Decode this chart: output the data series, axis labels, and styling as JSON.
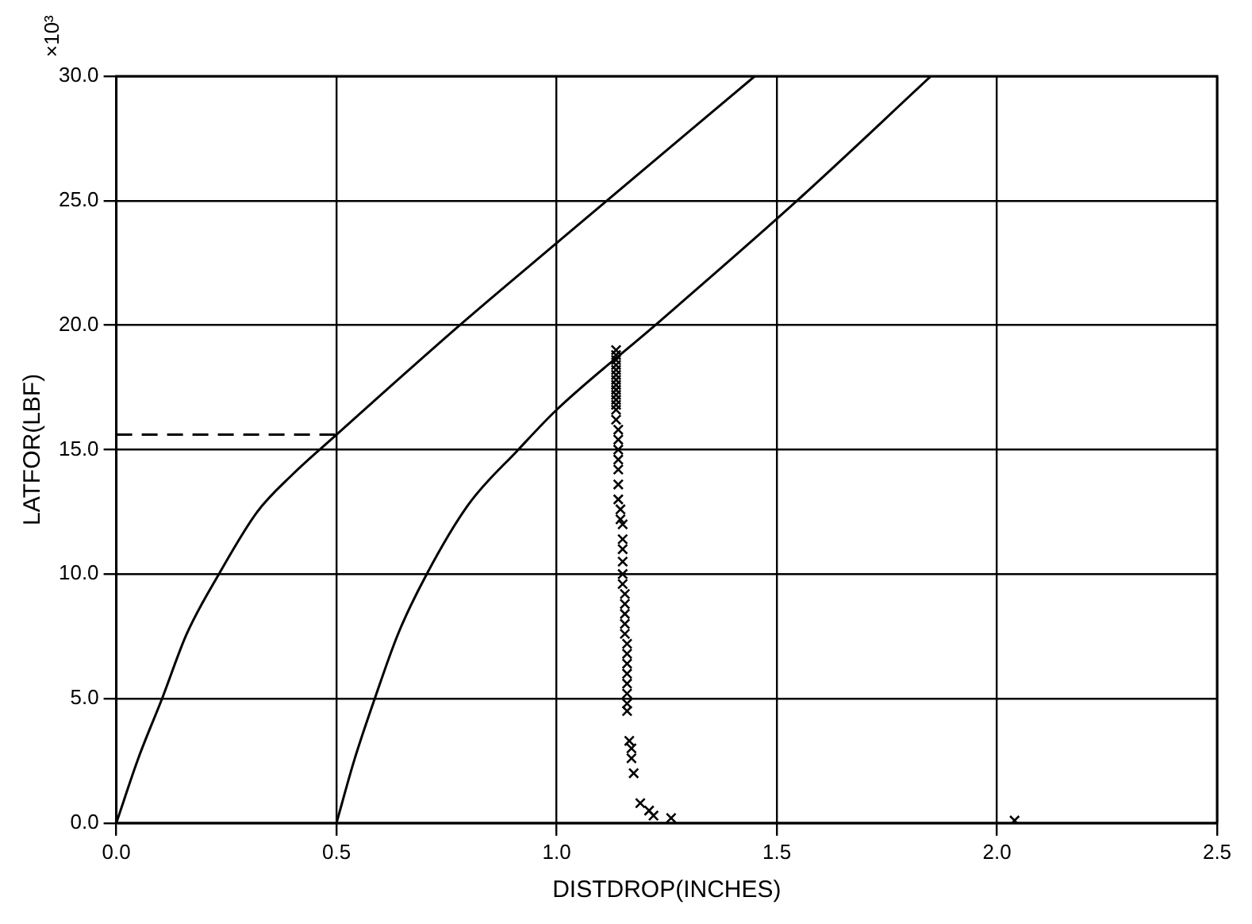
{
  "chart_data": {
    "type": "line",
    "xlabel": "DISTDROP(INCHES)",
    "ylabel": "LATFOR(LBF)",
    "annotations": [
      "×10³"
    ],
    "xlim": [
      0,
      2.5
    ],
    "xticks": [
      {
        "value": 0,
        "label": "0.0"
      },
      {
        "value": 0.5,
        "label": "0.5"
      },
      {
        "value": 1,
        "label": "1.0"
      },
      {
        "value": 1.5,
        "label": "1.5"
      },
      {
        "value": 2,
        "label": "2.0"
      },
      {
        "value": 2.5,
        "label": "2.5"
      }
    ],
    "ylim": [
      0,
      30
    ],
    "yticks": [
      {
        "value": 0,
        "label": "0.0"
      },
      {
        "value": 5,
        "label": "5.0"
      },
      {
        "value": 10,
        "label": "10.0"
      },
      {
        "value": 15,
        "label": "15.0"
      },
      {
        "value": 20,
        "label": "20.0"
      },
      {
        "value": 25,
        "label": "25.0"
      },
      {
        "value": 30,
        "label": "30.0"
      }
    ],
    "grid": true,
    "legend": false,
    "series": [
      {
        "type": "line",
        "color": "#000000",
        "x": [
          0,
          0.05,
          0.104,
          0.16,
          0.233,
          0.32,
          0.4,
          0.5,
          0.78,
          1.0,
          1.45
        ],
        "values": [
          0,
          2.6,
          5,
          7.6,
          10,
          12.5,
          14,
          15.6,
          20,
          23.3,
          30
        ]
      },
      {
        "type": "line",
        "color": "#000000",
        "x": [
          0.5,
          0.54,
          0.587,
          0.64,
          0.705,
          0.8,
          0.913,
          1.0,
          1.224,
          1.546,
          1.85
        ],
        "values": [
          0,
          2.5,
          5,
          7.6,
          10,
          12.8,
          15,
          16.6,
          20,
          25,
          30
        ]
      },
      {
        "type": "line",
        "color": "#000000",
        "line_style": "dashed",
        "x": [
          0,
          0.5
        ],
        "values": [
          15.6,
          15.6
        ]
      },
      {
        "type": "scatter",
        "color": "#000000",
        "marker": "cross",
        "x": [
          1.135,
          1.135,
          1.135,
          1.135,
          1.135,
          1.135,
          1.135,
          1.135,
          1.135,
          1.135,
          1.135,
          1.135,
          1.135,
          1.135,
          1.14,
          1.14,
          1.14,
          1.14,
          1.14,
          1.14,
          1.14,
          1.145,
          1.145,
          1.15,
          1.15,
          1.15,
          1.15,
          1.15,
          1.15,
          1.155,
          1.155,
          1.155,
          1.155,
          1.155,
          1.16,
          1.16,
          1.16,
          1.16,
          1.16,
          1.16,
          1.16,
          1.16,
          1.165,
          1.17,
          1.17,
          1.175,
          1.19,
          1.21,
          1.22,
          1.26,
          2.04
        ],
        "values": [
          19,
          18.8,
          18.6,
          18.4,
          18.2,
          18,
          17.8,
          17.6,
          17.4,
          17.2,
          17,
          16.8,
          16.6,
          16.2,
          15.8,
          15.4,
          15,
          14.6,
          14.2,
          13.6,
          13,
          12.6,
          12.2,
          12,
          11.4,
          11,
          10.5,
          10,
          9.6,
          9.2,
          8.8,
          8.4,
          8,
          7.6,
          7.2,
          6.8,
          6.4,
          6,
          5.6,
          5.2,
          4.8,
          4.5,
          3.3,
          3,
          2.6,
          2,
          0.8,
          0.5,
          0.3,
          0.2,
          0.1
        ]
      }
    ]
  }
}
